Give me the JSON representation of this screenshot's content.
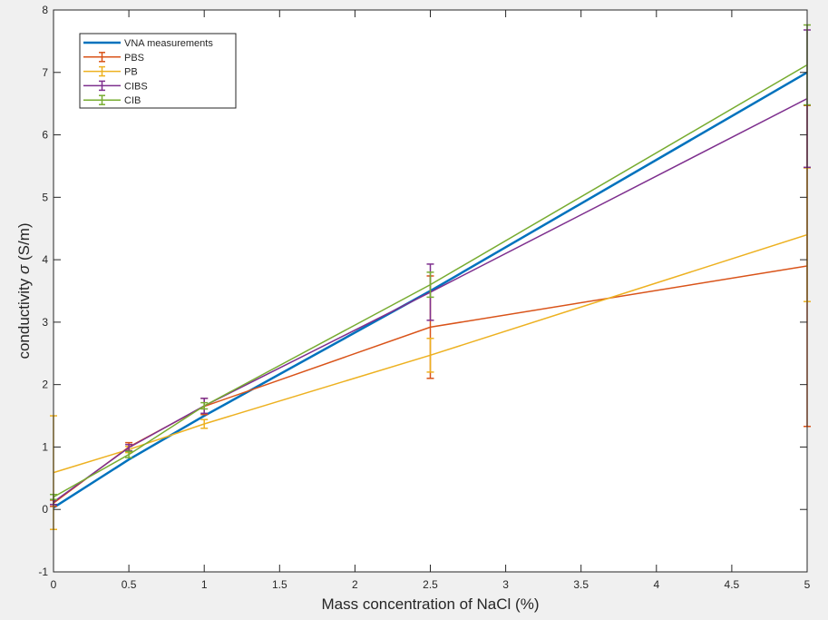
{
  "chart_data": {
    "type": "line",
    "title": "",
    "xlabel": "Mass concentration of NaCl (%)",
    "ylabel_prefix": "conductivity ",
    "ylabel_symbol": "σ",
    "ylabel_suffix": " (S/m)",
    "xlim": [
      0,
      5
    ],
    "ylim": [
      -1,
      8
    ],
    "xticks": [
      "0",
      "0.5",
      "1",
      "1.5",
      "2",
      "2.5",
      "3",
      "3.5",
      "4",
      "4.5",
      "5"
    ],
    "yticks": [
      "-1",
      "0",
      "1",
      "2",
      "3",
      "4",
      "5",
      "6",
      "7",
      "8"
    ],
    "grid": false,
    "legend_position": "top-left",
    "x": [
      0,
      0.5,
      1,
      2.5,
      5
    ],
    "series": [
      {
        "name": "VNA measurements",
        "color": "#0072bd",
        "values": [
          0.03,
          0.8,
          1.5,
          3.5,
          7.0
        ],
        "errors": null
      },
      {
        "name": "PBS",
        "color": "#d95319",
        "values": [
          0.1,
          1.0,
          1.65,
          2.92,
          3.9
        ],
        "errors": [
          0.05,
          0.07,
          0.13,
          0.82,
          2.57
        ]
      },
      {
        "name": "PB",
        "color": "#edb120",
        "values": [
          0.59,
          0.96,
          1.37,
          2.47,
          4.4
        ],
        "errors": [
          0.91,
          0.05,
          0.07,
          0.27,
          1.07
        ]
      },
      {
        "name": "CIBS",
        "color": "#7e2f8e",
        "values": [
          0.12,
          0.99,
          1.66,
          3.48,
          6.58
        ],
        "errors": [
          0.04,
          0.05,
          0.12,
          0.45,
          1.1
        ]
      },
      {
        "name": "CIB",
        "color": "#77ac30",
        "values": [
          0.2,
          0.88,
          1.66,
          3.6,
          7.12
        ],
        "errors": [
          0.04,
          0.05,
          0.05,
          0.2,
          0.64
        ]
      }
    ]
  }
}
